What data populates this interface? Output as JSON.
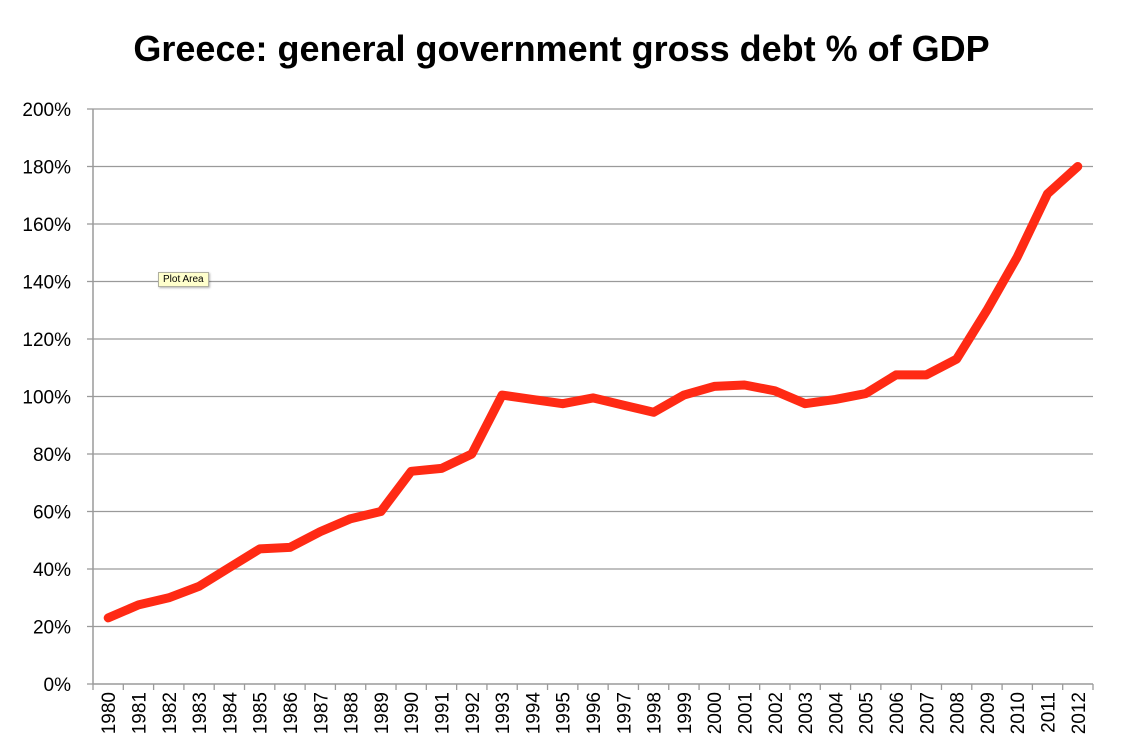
{
  "chart_data": {
    "type": "line",
    "title": "Greece: general government gross debt % of GDP",
    "xlabel": "",
    "ylabel": "",
    "ylim": [
      0,
      200
    ],
    "y_ticks": [
      "0%",
      "20%",
      "40%",
      "60%",
      "80%",
      "100%",
      "120%",
      "140%",
      "160%",
      "180%",
      "200%"
    ],
    "y_tick_values": [
      0,
      20,
      40,
      60,
      80,
      100,
      120,
      140,
      160,
      180,
      200
    ],
    "grid": true,
    "legend": "none",
    "categories": [
      "1980",
      "1981",
      "1982",
      "1983",
      "1984",
      "1985",
      "1986",
      "1987",
      "1988",
      "1989",
      "1990",
      "1991",
      "1992",
      "1993",
      "1994",
      "1995",
      "1996",
      "1997",
      "1998",
      "1999",
      "2000",
      "2001",
      "2002",
      "2003",
      "2004",
      "2005",
      "2006",
      "2007",
      "2008",
      "2009",
      "2010",
      "2011",
      "2012"
    ],
    "series": [
      {
        "color": "#ff2a14",
        "values": [
          23,
          27.5,
          30,
          34,
          40.5,
          47,
          47.5,
          53,
          57.5,
          60,
          74,
          75,
          80,
          100.5,
          99,
          97.5,
          99.5,
          97,
          94.5,
          100.5,
          103.5,
          104,
          102,
          97.5,
          99,
          101,
          107.5,
          107.5,
          113,
          130,
          148.5,
          170.5,
          180
        ]
      }
    ]
  },
  "tooltip": {
    "label": "Plot Area"
  }
}
